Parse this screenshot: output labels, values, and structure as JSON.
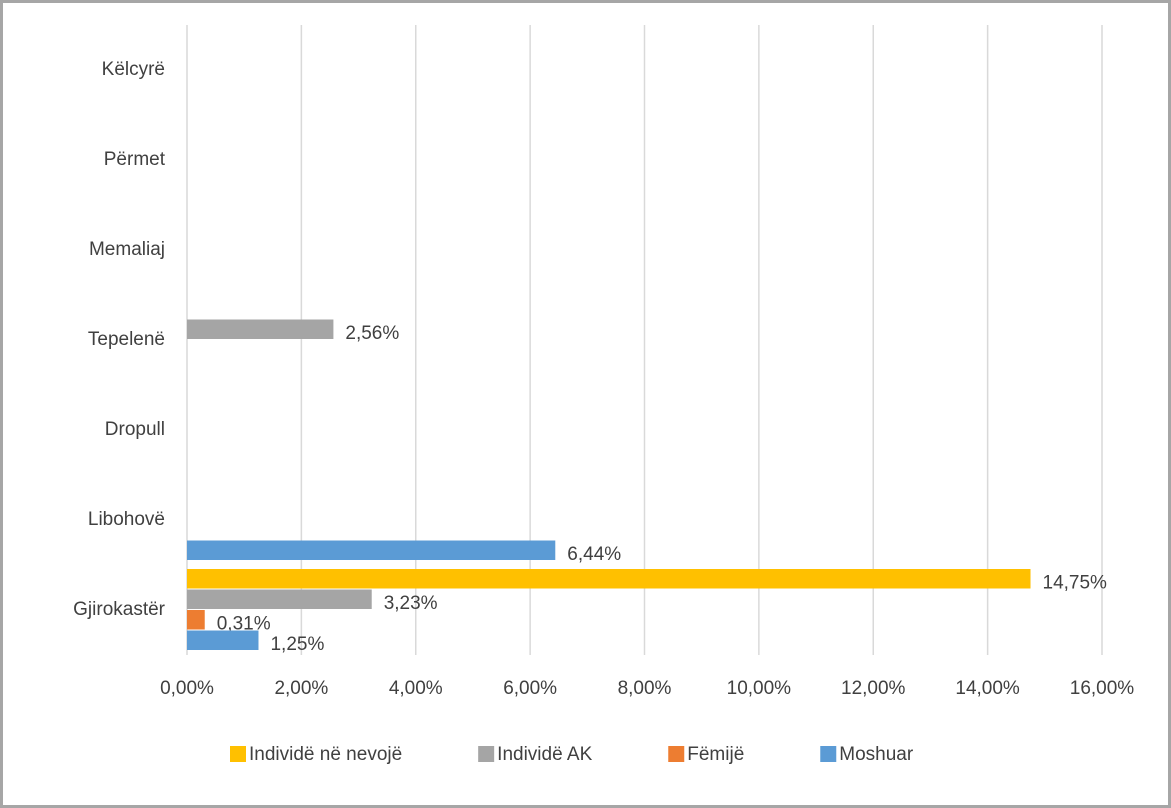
{
  "chart_data": {
    "type": "barh",
    "categories": [
      "Gjirokastër",
      "Libohovë",
      "Dropull",
      "Tepelenë",
      "Memaliaj",
      "Përmet",
      "Këlcyrë"
    ],
    "series": [
      {
        "name": "Individë në nevojë",
        "color": "#ffc000",
        "values": [
          14.75,
          null,
          null,
          null,
          null,
          null,
          null
        ],
        "value_labels": [
          "14,75%",
          null,
          null,
          null,
          null,
          null,
          null
        ]
      },
      {
        "name": "Individë AK",
        "color": "#a5a5a5",
        "values": [
          3.23,
          null,
          null,
          2.56,
          null,
          null,
          null
        ],
        "value_labels": [
          "3,23%",
          null,
          null,
          "2,56%",
          null,
          null,
          null
        ]
      },
      {
        "name": "Fëmijë",
        "color": "#ed7d31",
        "values": [
          0.31,
          null,
          null,
          null,
          null,
          null,
          null
        ],
        "value_labels": [
          "0,31%",
          null,
          null,
          null,
          null,
          null,
          null
        ]
      },
      {
        "name": "Moshuar",
        "color": "#5b9bd5",
        "values": [
          1.25,
          6.44,
          null,
          null,
          null,
          null,
          null
        ],
        "value_labels": [
          "1,25%",
          "6,44%",
          null,
          null,
          null,
          null,
          null
        ]
      }
    ],
    "xlim": [
      0,
      16
    ],
    "xticks": [
      {
        "value": 0,
        "label": "0,00%"
      },
      {
        "value": 2,
        "label": "2,00%"
      },
      {
        "value": 4,
        "label": "4,00%"
      },
      {
        "value": 6,
        "label": "6,00%"
      },
      {
        "value": 8,
        "label": "8,00%"
      },
      {
        "value": 10,
        "label": "10,00%"
      },
      {
        "value": 12,
        "label": "12,00%"
      },
      {
        "value": 14,
        "label": "14,00%"
      },
      {
        "value": 16,
        "label": "16,00%"
      }
    ],
    "grid": true,
    "legend": "bottom"
  }
}
